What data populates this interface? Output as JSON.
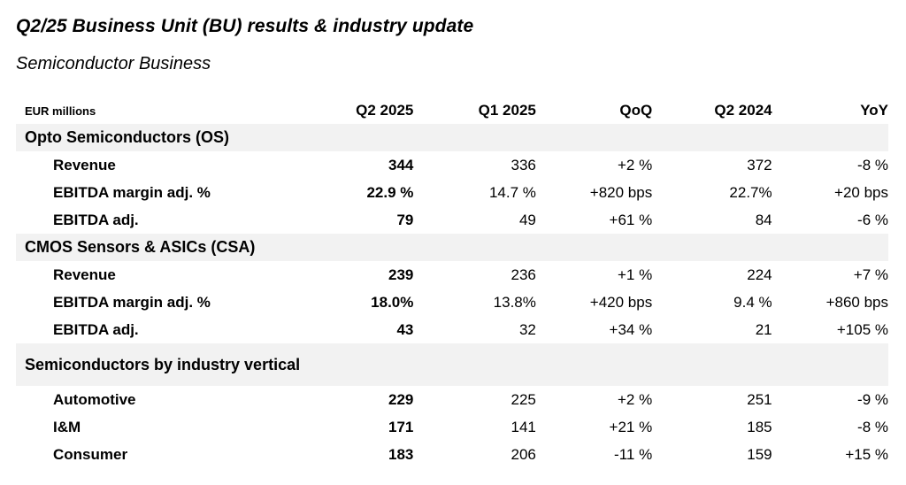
{
  "title": "Q2/25 Business Unit (BU) results & industry update",
  "subtitle": "Semiconductor Business",
  "table": {
    "unit_label": "EUR millions",
    "columns": [
      "Q2 2025",
      "Q1 2025",
      "QoQ",
      "Q2 2024",
      "YoY"
    ],
    "sections": [
      {
        "label": "Opto Semiconductors (OS)",
        "rows": [
          {
            "label": "Revenue",
            "values": [
              "344",
              "336",
              "+2 %",
              "372",
              "-8 %"
            ]
          },
          {
            "label": "EBITDA margin adj. %",
            "values": [
              "22.9 %",
              "14.7 %",
              "+820 bps",
              "22.7%",
              "+20 bps"
            ]
          },
          {
            "label": "EBITDA adj.",
            "values": [
              "79",
              "49",
              "+61 %",
              "84",
              "-6 %"
            ]
          }
        ]
      },
      {
        "label": "CMOS Sensors & ASICs (CSA)",
        "rows": [
          {
            "label": "Revenue",
            "values": [
              "239",
              "236",
              "+1 %",
              "224",
              "+7 %"
            ]
          },
          {
            "label": "EBITDA margin adj. %",
            "values": [
              "18.0%",
              "13.8%",
              "+420 bps",
              "9.4 %",
              "+860 bps"
            ]
          },
          {
            "label": "EBITDA adj.",
            "values": [
              "43",
              "32",
              "+34 %",
              "21",
              "+105 %"
            ]
          }
        ]
      },
      {
        "label": "Semiconductors by industry vertical",
        "rows": [
          {
            "label": "Automotive",
            "values": [
              "229",
              "225",
              "+2 %",
              "251",
              "-9 %"
            ]
          },
          {
            "label": "I&M",
            "values": [
              "171",
              "141",
              "+21 %",
              "185",
              "-8 %"
            ]
          },
          {
            "label": "Consumer",
            "values": [
              "183",
              "206",
              "-11 %",
              "159",
              "+15 %"
            ]
          }
        ]
      }
    ]
  }
}
